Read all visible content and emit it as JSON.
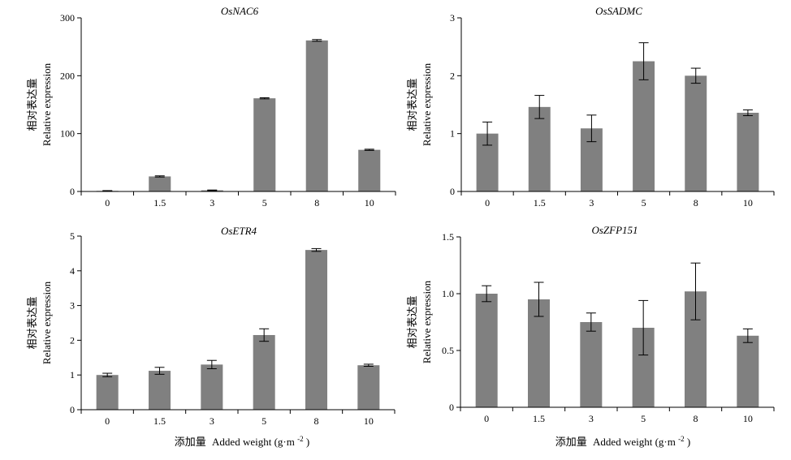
{
  "figure": {
    "xlabel_cn": "添加量",
    "xlabel_en": "Added weight (g·m",
    "xlabel_sup": "-2",
    "xlabel_close": ")"
  },
  "chart_data": [
    {
      "type": "bar",
      "title": "OsNAC6",
      "ylabel_cn": "相对表达量",
      "ylabel_en": "Relative expression",
      "categories": [
        "0",
        "1.5",
        "3",
        "5",
        "8",
        "10"
      ],
      "values": [
        1,
        26,
        2,
        161,
        261,
        72
      ],
      "errors": [
        0.5,
        1,
        0.5,
        1,
        1.5,
        1
      ],
      "ylim": [
        0,
        300
      ],
      "yticks": [
        "0",
        "100",
        "200",
        "300"
      ],
      "ytick_values": [
        0,
        100,
        200,
        300
      ],
      "bar_color": "#808080"
    },
    {
      "type": "bar",
      "title": "OsSADMC",
      "ylabel_cn": "相对表达量",
      "ylabel_en": "Relative expression",
      "categories": [
        "0",
        "1.5",
        "3",
        "5",
        "8",
        "10"
      ],
      "values": [
        1.0,
        1.46,
        1.09,
        2.25,
        2.0,
        1.36
      ],
      "errors": [
        0.2,
        0.2,
        0.23,
        0.32,
        0.13,
        0.05
      ],
      "ylim": [
        0,
        3
      ],
      "yticks": [
        "0",
        "1",
        "2",
        "3"
      ],
      "ytick_values": [
        0,
        1,
        2,
        3
      ],
      "bar_color": "#808080"
    },
    {
      "type": "bar",
      "title": "OsETR4",
      "ylabel_cn": "相对表达量",
      "ylabel_en": "Relative expression",
      "categories": [
        "0",
        "1.5",
        "3",
        "5",
        "8",
        "10"
      ],
      "values": [
        1.0,
        1.12,
        1.3,
        2.15,
        4.6,
        1.28
      ],
      "errors": [
        0.05,
        0.1,
        0.12,
        0.18,
        0.04,
        0.03
      ],
      "ylim": [
        0,
        5
      ],
      "yticks": [
        "0",
        "1",
        "2",
        "3",
        "4",
        "5"
      ],
      "ytick_values": [
        0,
        1,
        2,
        3,
        4,
        5
      ],
      "bar_color": "#808080"
    },
    {
      "type": "bar",
      "title": "OsZFP151",
      "ylabel_cn": "相对表达量",
      "ylabel_en": "Relative expression",
      "categories": [
        "0",
        "1.5",
        "3",
        "5",
        "8",
        "10"
      ],
      "values": [
        1.0,
        0.95,
        0.75,
        0.7,
        1.02,
        0.63
      ],
      "errors": [
        0.07,
        0.15,
        0.08,
        0.24,
        0.25,
        0.06
      ],
      "ylim": [
        0,
        1.5
      ],
      "yticks": [
        "0",
        "0.5",
        "1.0",
        "1.5"
      ],
      "ytick_values": [
        0,
        0.5,
        1.0,
        1.5
      ],
      "bar_color": "#808080"
    }
  ]
}
